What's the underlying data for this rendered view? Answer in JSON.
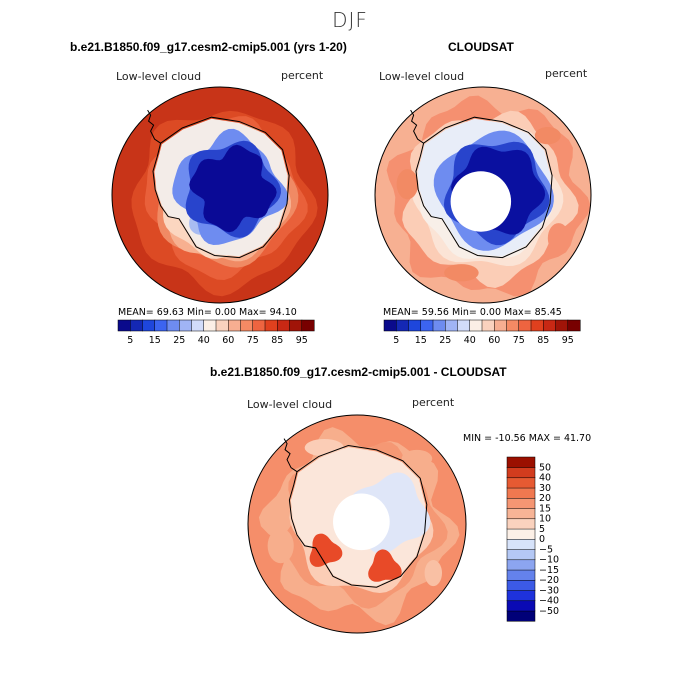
{
  "figure": {
    "title": "DJF"
  },
  "panels": [
    {
      "id": "model",
      "title": "b.e21.B1850.f09_g17.cesm2-cmip5.001 (yrs 1-20)",
      "left_label": "Low-level cloud",
      "right_label": "percent",
      "stats": "MEAN=  69.63  Min=    0.00  Max=  94.10"
    },
    {
      "id": "obs",
      "title": "CLOUDSAT",
      "left_label": "Low-level cloud",
      "right_label": "percent",
      "stats": "MEAN=  59.56  Min=    0.00  Max=  85.45"
    },
    {
      "id": "diff",
      "title": "b.e21.B1850.f09_g17.cesm2-cmip5.001 - CLOUDSAT",
      "left_label": "Low-level cloud",
      "right_label": "percent",
      "stats": "MIN = -10.56 MAX =  41.70"
    }
  ],
  "colorbar_abs": {
    "colors": [
      "#0a0a8c",
      "#1428b4",
      "#1e46dc",
      "#3c64f0",
      "#6e8cf0",
      "#a0b4f5",
      "#d2dcfa",
      "#fbefe6",
      "#fad2be",
      "#f7ae91",
      "#f58a64",
      "#ee6440",
      "#e0401e",
      "#c82814",
      "#a01408",
      "#780000"
    ],
    "labels": [
      "5",
      "15",
      "25",
      "40",
      "60",
      "75",
      "85",
      "95"
    ]
  },
  "colorbar_diff": {
    "colors": [
      "#000078",
      "#0a0ab4",
      "#1e32dc",
      "#3c5ae6",
      "#6482ec",
      "#8ca5f0",
      "#b4c8f5",
      "#d7e3fa",
      "#fcf0e7",
      "#fad2be",
      "#f7b496",
      "#f59673",
      "#f07850",
      "#e65a32",
      "#d23c1e",
      "#9b1000"
    ],
    "labels": [
      "50",
      "40",
      "30",
      "20",
      "15",
      "10",
      "5",
      "0",
      "−5",
      "−10",
      "−15",
      "−20",
      "−30",
      "−40",
      "−50"
    ]
  }
}
